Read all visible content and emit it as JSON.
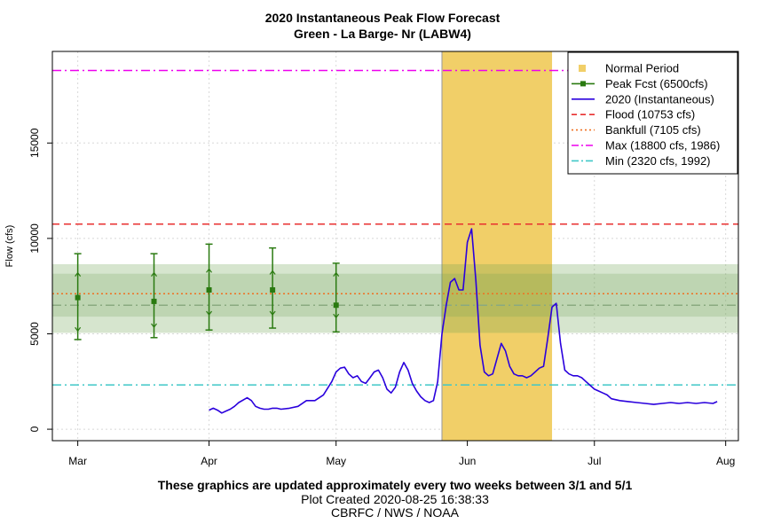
{
  "header": {
    "title": "2020 Instantaneous Peak Flow Forecast",
    "subtitle": "Green - La Barge- Nr (LABW4)"
  },
  "footer": {
    "note": "These graphics are updated approximately every two weeks between 3/1 and 5/1",
    "created": "Plot Created 2020-08-25 16:38:33",
    "agency": "CBRFC / NWS / NOAA"
  },
  "colors": {
    "normal_period": "#f1cf68",
    "peak_fcst": "#2a7a10",
    "instantaneous": "#2a00dd",
    "flood": "#e83030",
    "bankfull": "#f07020",
    "max": "#ee00ee",
    "min": "#40c8c8",
    "band_outer": "#d4e4cc",
    "band_inner": "#bcd6b0",
    "median_line": "#8aaa80"
  },
  "chart_data": {
    "type": "line",
    "title": "2020 Instantaneous Peak Flow Forecast",
    "subtitle": "Green - La Barge- Nr (LABW4)",
    "xlabel": "",
    "ylabel": "Flow (cfs)",
    "xlim": [
      -6,
      156
    ],
    "ylim": [
      -600,
      19800
    ],
    "x_ticks": [
      {
        "x": 0,
        "label": "Mar"
      },
      {
        "x": 31,
        "label": "Apr"
      },
      {
        "x": 61,
        "label": "May"
      },
      {
        "x": 92,
        "label": "Jun"
      },
      {
        "x": 122,
        "label": "Jul"
      },
      {
        "x": 153,
        "label": "Aug"
      }
    ],
    "y_ticks": [
      0,
      5000,
      10000,
      15000
    ],
    "grid": true,
    "legend_position": "top-right",
    "legend": [
      {
        "label": "Normal Period",
        "style": "square"
      },
      {
        "label": "Peak Fcst (6500cfs)",
        "style": "line-point"
      },
      {
        "label": "2020  (Instantaneous)",
        "style": "line"
      },
      {
        "label": "Flood (10753 cfs)",
        "style": "dash"
      },
      {
        "label": "Bankfull (7105 cfs)",
        "style": "dot"
      },
      {
        "label": "Max (18800 cfs, 1986)",
        "style": "dashdot"
      },
      {
        "label": "Min (2320 cfs, 1992)",
        "style": "dashdot"
      }
    ],
    "normal_period": [
      86,
      112
    ],
    "reference_lines": {
      "flood": 10753,
      "bankfull": 7105,
      "max": 18800,
      "min": 2320
    },
    "forecast_bands": {
      "outer": [
        5050,
        8650
      ],
      "inner": [
        5900,
        8150
      ],
      "median": 6500
    },
    "peak_forecasts": [
      {
        "x": 0,
        "value": 6900,
        "low": 4700,
        "high": 9200,
        "q_low": 5150,
        "q_high": 8200
      },
      {
        "x": 18,
        "value": 6700,
        "low": 4800,
        "high": 9200,
        "q_low": 5350,
        "q_high": 8200
      },
      {
        "x": 31,
        "value": 7300,
        "low": 5200,
        "high": 9700,
        "q_low": 6000,
        "q_high": 8400
      },
      {
        "x": 46,
        "value": 7300,
        "low": 5300,
        "high": 9500,
        "q_low": 6000,
        "q_high": 8300
      },
      {
        "x": 61,
        "value": 6500,
        "low": 5100,
        "high": 8700,
        "q_low": 5850,
        "q_high": 8200
      }
    ],
    "series": [
      {
        "name": "2020  (Instantaneous)",
        "x": [
          31,
          32,
          33,
          34,
          35,
          36,
          37,
          38,
          40,
          41,
          42,
          43,
          44,
          45,
          46,
          47,
          48,
          50,
          52,
          54,
          56,
          58,
          60,
          61,
          62,
          63,
          64,
          65,
          66,
          67,
          68,
          69,
          70,
          71,
          72,
          73,
          74,
          75,
          76,
          77,
          78,
          79,
          80,
          81,
          82,
          83,
          84,
          85,
          86,
          87,
          88,
          89,
          90,
          91,
          92,
          93,
          94,
          95,
          96,
          97,
          98,
          99,
          100,
          101,
          102,
          103,
          104,
          105,
          106,
          107,
          108,
          109,
          110,
          111,
          112,
          113,
          114,
          115,
          116,
          117,
          118,
          119,
          120,
          121,
          122,
          123,
          124,
          125,
          126,
          128,
          130,
          132,
          134,
          136,
          138,
          140,
          142,
          144,
          146,
          148,
          150,
          151
        ],
        "values": [
          1000,
          1100,
          1000,
          850,
          950,
          1050,
          1200,
          1400,
          1650,
          1500,
          1200,
          1100,
          1050,
          1050,
          1100,
          1100,
          1050,
          1100,
          1200,
          1500,
          1500,
          1800,
          2500,
          3000,
          3200,
          3250,
          2900,
          2700,
          2800,
          2500,
          2400,
          2700,
          3000,
          3100,
          2700,
          2100,
          1900,
          2200,
          3000,
          3500,
          3100,
          2400,
          2000,
          1700,
          1500,
          1400,
          1500,
          2500,
          5000,
          6500,
          7700,
          7900,
          7300,
          7300,
          9800,
          10500,
          7800,
          4400,
          3000,
          2800,
          2900,
          3700,
          4500,
          4100,
          3300,
          2900,
          2800,
          2800,
          2700,
          2800,
          3000,
          3200,
          3300,
          4800,
          6400,
          6600,
          4500,
          3100,
          2900,
          2800,
          2800,
          2700,
          2500,
          2300,
          2100,
          2000,
          1900,
          1800,
          1600,
          1500,
          1450,
          1400,
          1350,
          1300,
          1350,
          1400,
          1350,
          1400,
          1350,
          1400,
          1350,
          1450
        ]
      }
    ]
  }
}
